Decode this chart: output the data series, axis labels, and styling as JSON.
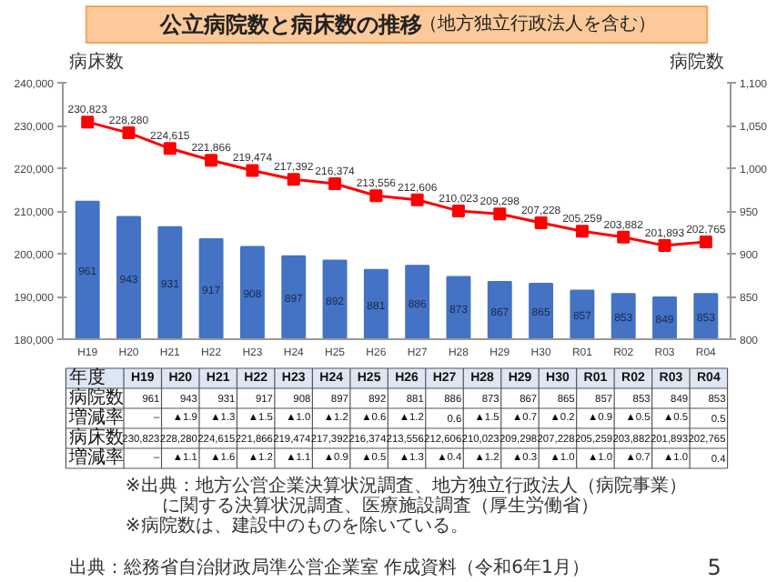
{
  "chart_data": {
    "type": "bar",
    "title": "公立病院数と病床数の推移",
    "subtitle": "（地方独立行政法人を含む）",
    "ylabel": "病床数",
    "y2label": "病院数",
    "categories": [
      "H19",
      "H20",
      "H21",
      "H22",
      "H23",
      "H24",
      "H25",
      "H26",
      "H27",
      "H28",
      "H29",
      "H30",
      "R01",
      "R02",
      "R03",
      "R04"
    ],
    "series": [
      {
        "axis": "y2",
        "color": "#4472c4",
        "values": [
          961,
          943,
          931,
          917,
          908,
          897,
          892,
          881,
          886,
          873,
          867,
          865,
          857,
          853,
          849,
          853
        ],
        "value_labels": [
          "961",
          "943",
          "931",
          "917",
          "908",
          "897",
          "892",
          "881",
          "886",
          "873",
          "867",
          "865",
          "857",
          "853",
          "849",
          "853"
        ]
      },
      {
        "type": "line",
        "color": "#ff0000",
        "values": [
          230823,
          228280,
          224615,
          221866,
          219474,
          217392,
          216374,
          213556,
          212606,
          210023,
          209298,
          207228,
          205259,
          203882,
          201893,
          202765
        ],
        "value_labels": [
          "230,823",
          "228,280",
          "224,615",
          "221,866",
          "219,474",
          "217,392",
          "216,374",
          "213,556",
          "212,606",
          "210,023",
          "209,298",
          "207,228",
          "205,259",
          "203,882",
          "201,893",
          "202,765"
        ]
      }
    ],
    "marker": "square",
    "line_style": "solid",
    "ylim": [
      180000,
      240000
    ],
    "yticks": [
      {
        "value": 180000,
        "label": "180,000"
      },
      {
        "value": 190000,
        "label": "190,000"
      },
      {
        "value": 200000,
        "label": "200,000"
      },
      {
        "value": 210000,
        "label": "210,000"
      },
      {
        "value": 220000,
        "label": "220,000"
      },
      {
        "value": 230000,
        "label": "230,000"
      },
      {
        "value": 240000,
        "label": "240,000"
      }
    ],
    "y2lim": [
      800,
      1100
    ],
    "y2ticks": [
      800,
      850,
      900,
      950,
      {
        "value": 1000,
        "label": "1,000"
      },
      {
        "value": 1050,
        "label": "1,050"
      },
      {
        "value": 1100,
        "label": "1,100"
      }
    ],
    "annotations": [
      "年度",
      "H19",
      "H20",
      "H21",
      "H22",
      "H23",
      "H24",
      "H25",
      "H26",
      "H27",
      "H28",
      "H29",
      "H30",
      "R01",
      "R02",
      "R03",
      "R04",
      "病院数",
      "961",
      "943",
      "931",
      "917",
      "908",
      "897",
      "892",
      "881",
      "886",
      "873",
      "867",
      "865",
      "857",
      "853",
      "849",
      "853",
      "増減率",
      "–",
      "▲1.9",
      "▲1.3",
      "▲1.5",
      "▲1.0",
      "▲1.2",
      "▲0.6",
      "▲1.2",
      "0.6",
      "▲1.5",
      "▲0.7",
      "▲0.2",
      "▲0.9",
      "▲0.5",
      "▲0.5",
      "0.5",
      "病床数",
      "230,823",
      "228,280",
      "224,615",
      "221,866",
      "219,474",
      "217,392",
      "216,374",
      "213,556",
      "212,606",
      "210,023",
      "209,298",
      "207,228",
      "205,259",
      "203,882",
      "201,893",
      "202,765",
      "増減率",
      "–",
      "▲1.1",
      "▲1.6",
      "▲1.2",
      "▲1.1",
      "▲0.9",
      "▲0.5",
      "▲1.3",
      "▲0.4",
      "▲1.2",
      "▲0.3",
      "▲1.0",
      "▲1.0",
      "▲0.7",
      "▲1.0",
      "0.4",
      "※出典：地方公営企業決算状況調査、地方独立行政法人（病院事業）",
      "　　に関する決算状況調査、医療施設調査（厚生労働省）",
      "※病院数は、建設中のものを除いている。",
      "出典：総務省自治財政局準公営企業室 作成資料（令和6年1月）",
      "5"
    ]
  }
}
